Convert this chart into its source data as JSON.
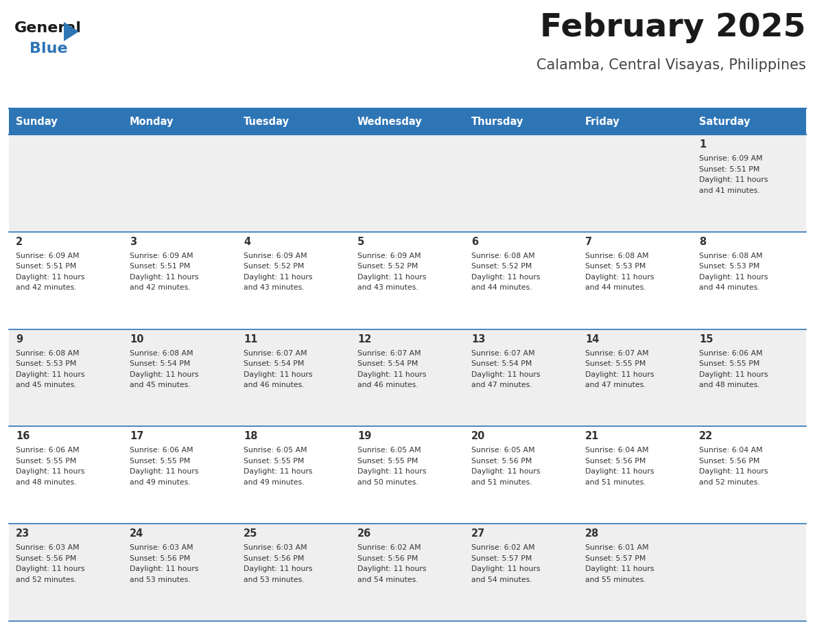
{
  "title": "February 2025",
  "subtitle": "Calamba, Central Visayas, Philippines",
  "header_bg": "#2E75B6",
  "header_text": "#FFFFFF",
  "cell_bg_odd": "#EFEFEF",
  "cell_bg_even": "#FFFFFF",
  "border_color": "#2E75B6",
  "text_color": "#333333",
  "days_of_week": [
    "Sunday",
    "Monday",
    "Tuesday",
    "Wednesday",
    "Thursday",
    "Friday",
    "Saturday"
  ],
  "weeks": [
    [
      {
        "day": "",
        "sunrise": "",
        "sunset": "",
        "daylight": ""
      },
      {
        "day": "",
        "sunrise": "",
        "sunset": "",
        "daylight": ""
      },
      {
        "day": "",
        "sunrise": "",
        "sunset": "",
        "daylight": ""
      },
      {
        "day": "",
        "sunrise": "",
        "sunset": "",
        "daylight": ""
      },
      {
        "day": "",
        "sunrise": "",
        "sunset": "",
        "daylight": ""
      },
      {
        "day": "",
        "sunrise": "",
        "sunset": "",
        "daylight": ""
      },
      {
        "day": "1",
        "sunrise": "6:09 AM",
        "sunset": "5:51 PM",
        "daylight": "11 hours and 41 minutes."
      }
    ],
    [
      {
        "day": "2",
        "sunrise": "6:09 AM",
        "sunset": "5:51 PM",
        "daylight": "11 hours and 42 minutes."
      },
      {
        "day": "3",
        "sunrise": "6:09 AM",
        "sunset": "5:51 PM",
        "daylight": "11 hours and 42 minutes."
      },
      {
        "day": "4",
        "sunrise": "6:09 AM",
        "sunset": "5:52 PM",
        "daylight": "11 hours and 43 minutes."
      },
      {
        "day": "5",
        "sunrise": "6:09 AM",
        "sunset": "5:52 PM",
        "daylight": "11 hours and 43 minutes."
      },
      {
        "day": "6",
        "sunrise": "6:08 AM",
        "sunset": "5:52 PM",
        "daylight": "11 hours and 44 minutes."
      },
      {
        "day": "7",
        "sunrise": "6:08 AM",
        "sunset": "5:53 PM",
        "daylight": "11 hours and 44 minutes."
      },
      {
        "day": "8",
        "sunrise": "6:08 AM",
        "sunset": "5:53 PM",
        "daylight": "11 hours and 44 minutes."
      }
    ],
    [
      {
        "day": "9",
        "sunrise": "6:08 AM",
        "sunset": "5:53 PM",
        "daylight": "11 hours and 45 minutes."
      },
      {
        "day": "10",
        "sunrise": "6:08 AM",
        "sunset": "5:54 PM",
        "daylight": "11 hours and 45 minutes."
      },
      {
        "day": "11",
        "sunrise": "6:07 AM",
        "sunset": "5:54 PM",
        "daylight": "11 hours and 46 minutes."
      },
      {
        "day": "12",
        "sunrise": "6:07 AM",
        "sunset": "5:54 PM",
        "daylight": "11 hours and 46 minutes."
      },
      {
        "day": "13",
        "sunrise": "6:07 AM",
        "sunset": "5:54 PM",
        "daylight": "11 hours and 47 minutes."
      },
      {
        "day": "14",
        "sunrise": "6:07 AM",
        "sunset": "5:55 PM",
        "daylight": "11 hours and 47 minutes."
      },
      {
        "day": "15",
        "sunrise": "6:06 AM",
        "sunset": "5:55 PM",
        "daylight": "11 hours and 48 minutes."
      }
    ],
    [
      {
        "day": "16",
        "sunrise": "6:06 AM",
        "sunset": "5:55 PM",
        "daylight": "11 hours and 48 minutes."
      },
      {
        "day": "17",
        "sunrise": "6:06 AM",
        "sunset": "5:55 PM",
        "daylight": "11 hours and 49 minutes."
      },
      {
        "day": "18",
        "sunrise": "6:05 AM",
        "sunset": "5:55 PM",
        "daylight": "11 hours and 49 minutes."
      },
      {
        "day": "19",
        "sunrise": "6:05 AM",
        "sunset": "5:55 PM",
        "daylight": "11 hours and 50 minutes."
      },
      {
        "day": "20",
        "sunrise": "6:05 AM",
        "sunset": "5:56 PM",
        "daylight": "11 hours and 51 minutes."
      },
      {
        "day": "21",
        "sunrise": "6:04 AM",
        "sunset": "5:56 PM",
        "daylight": "11 hours and 51 minutes."
      },
      {
        "day": "22",
        "sunrise": "6:04 AM",
        "sunset": "5:56 PM",
        "daylight": "11 hours and 52 minutes."
      }
    ],
    [
      {
        "day": "23",
        "sunrise": "6:03 AM",
        "sunset": "5:56 PM",
        "daylight": "11 hours and 52 minutes."
      },
      {
        "day": "24",
        "sunrise": "6:03 AM",
        "sunset": "5:56 PM",
        "daylight": "11 hours and 53 minutes."
      },
      {
        "day": "25",
        "sunrise": "6:03 AM",
        "sunset": "5:56 PM",
        "daylight": "11 hours and 53 minutes."
      },
      {
        "day": "26",
        "sunrise": "6:02 AM",
        "sunset": "5:56 PM",
        "daylight": "11 hours and 54 minutes."
      },
      {
        "day": "27",
        "sunrise": "6:02 AM",
        "sunset": "5:57 PM",
        "daylight": "11 hours and 54 minutes."
      },
      {
        "day": "28",
        "sunrise": "6:01 AM",
        "sunset": "5:57 PM",
        "daylight": "11 hours and 55 minutes."
      },
      {
        "day": "",
        "sunrise": "",
        "sunset": "",
        "daylight": ""
      }
    ]
  ]
}
